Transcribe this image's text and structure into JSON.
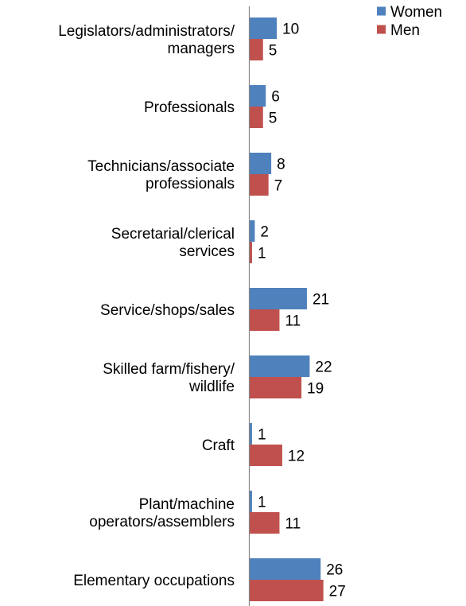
{
  "chart_data": {
    "type": "bar",
    "orientation": "horizontal",
    "title": "",
    "xlabel": "",
    "ylabel": "",
    "grid": false,
    "legend_position": "top-right",
    "categories": [
      [
        "Legislators/administrators/",
        "managers"
      ],
      [
        "Professionals"
      ],
      [
        "Technicians/associate",
        "professionals"
      ],
      [
        "Secretarial/clerical",
        "services"
      ],
      [
        "Service/shops/sales"
      ],
      [
        "Skilled farm/fishery/",
        "wildlife"
      ],
      [
        "Craft"
      ],
      [
        "Plant/machine",
        "operators/assemblers"
      ],
      [
        "Elementary occupations"
      ]
    ],
    "series": [
      {
        "name": "Women",
        "color": "#4f81bd",
        "values": [
          10,
          6,
          8,
          2,
          21,
          22,
          1,
          1,
          26
        ]
      },
      {
        "name": "Men",
        "color": "#c0504d",
        "values": [
          5,
          5,
          7,
          1,
          11,
          19,
          12,
          11,
          27
        ]
      }
    ],
    "xlim": [
      0,
      30
    ]
  }
}
